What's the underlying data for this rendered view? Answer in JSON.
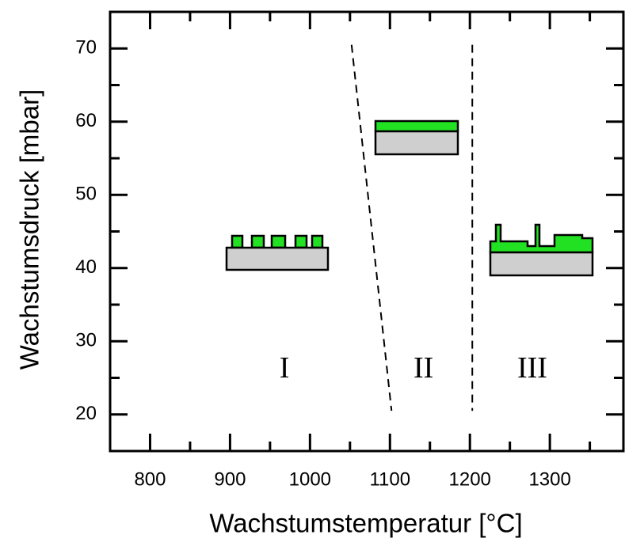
{
  "chart_data": {
    "type": "phase-diagram",
    "x_label": "Wachstumstemperatur [°C]",
    "y_label": "Wachstumsdruck [mbar]",
    "xlim": [
      750,
      1392
    ],
    "xticks": [
      800,
      900,
      1000,
      1100,
      1200,
      1300
    ],
    "ylim": [
      15,
      75
    ],
    "yticks": [
      20,
      30,
      40,
      50,
      60,
      70
    ],
    "boundaries": [
      {
        "x": [
          1052,
          1102
        ],
        "y": [
          70.5,
          20.5
        ]
      },
      {
        "x": [
          1203,
          1203
        ],
        "y": [
          70.5,
          20.5
        ]
      }
    ],
    "regions": [
      {
        "label": "I",
        "x": 968,
        "y": 26
      },
      {
        "label": "II",
        "x": 1142,
        "y": 26
      },
      {
        "label": "III",
        "x": 1278,
        "y": 26
      }
    ]
  }
}
